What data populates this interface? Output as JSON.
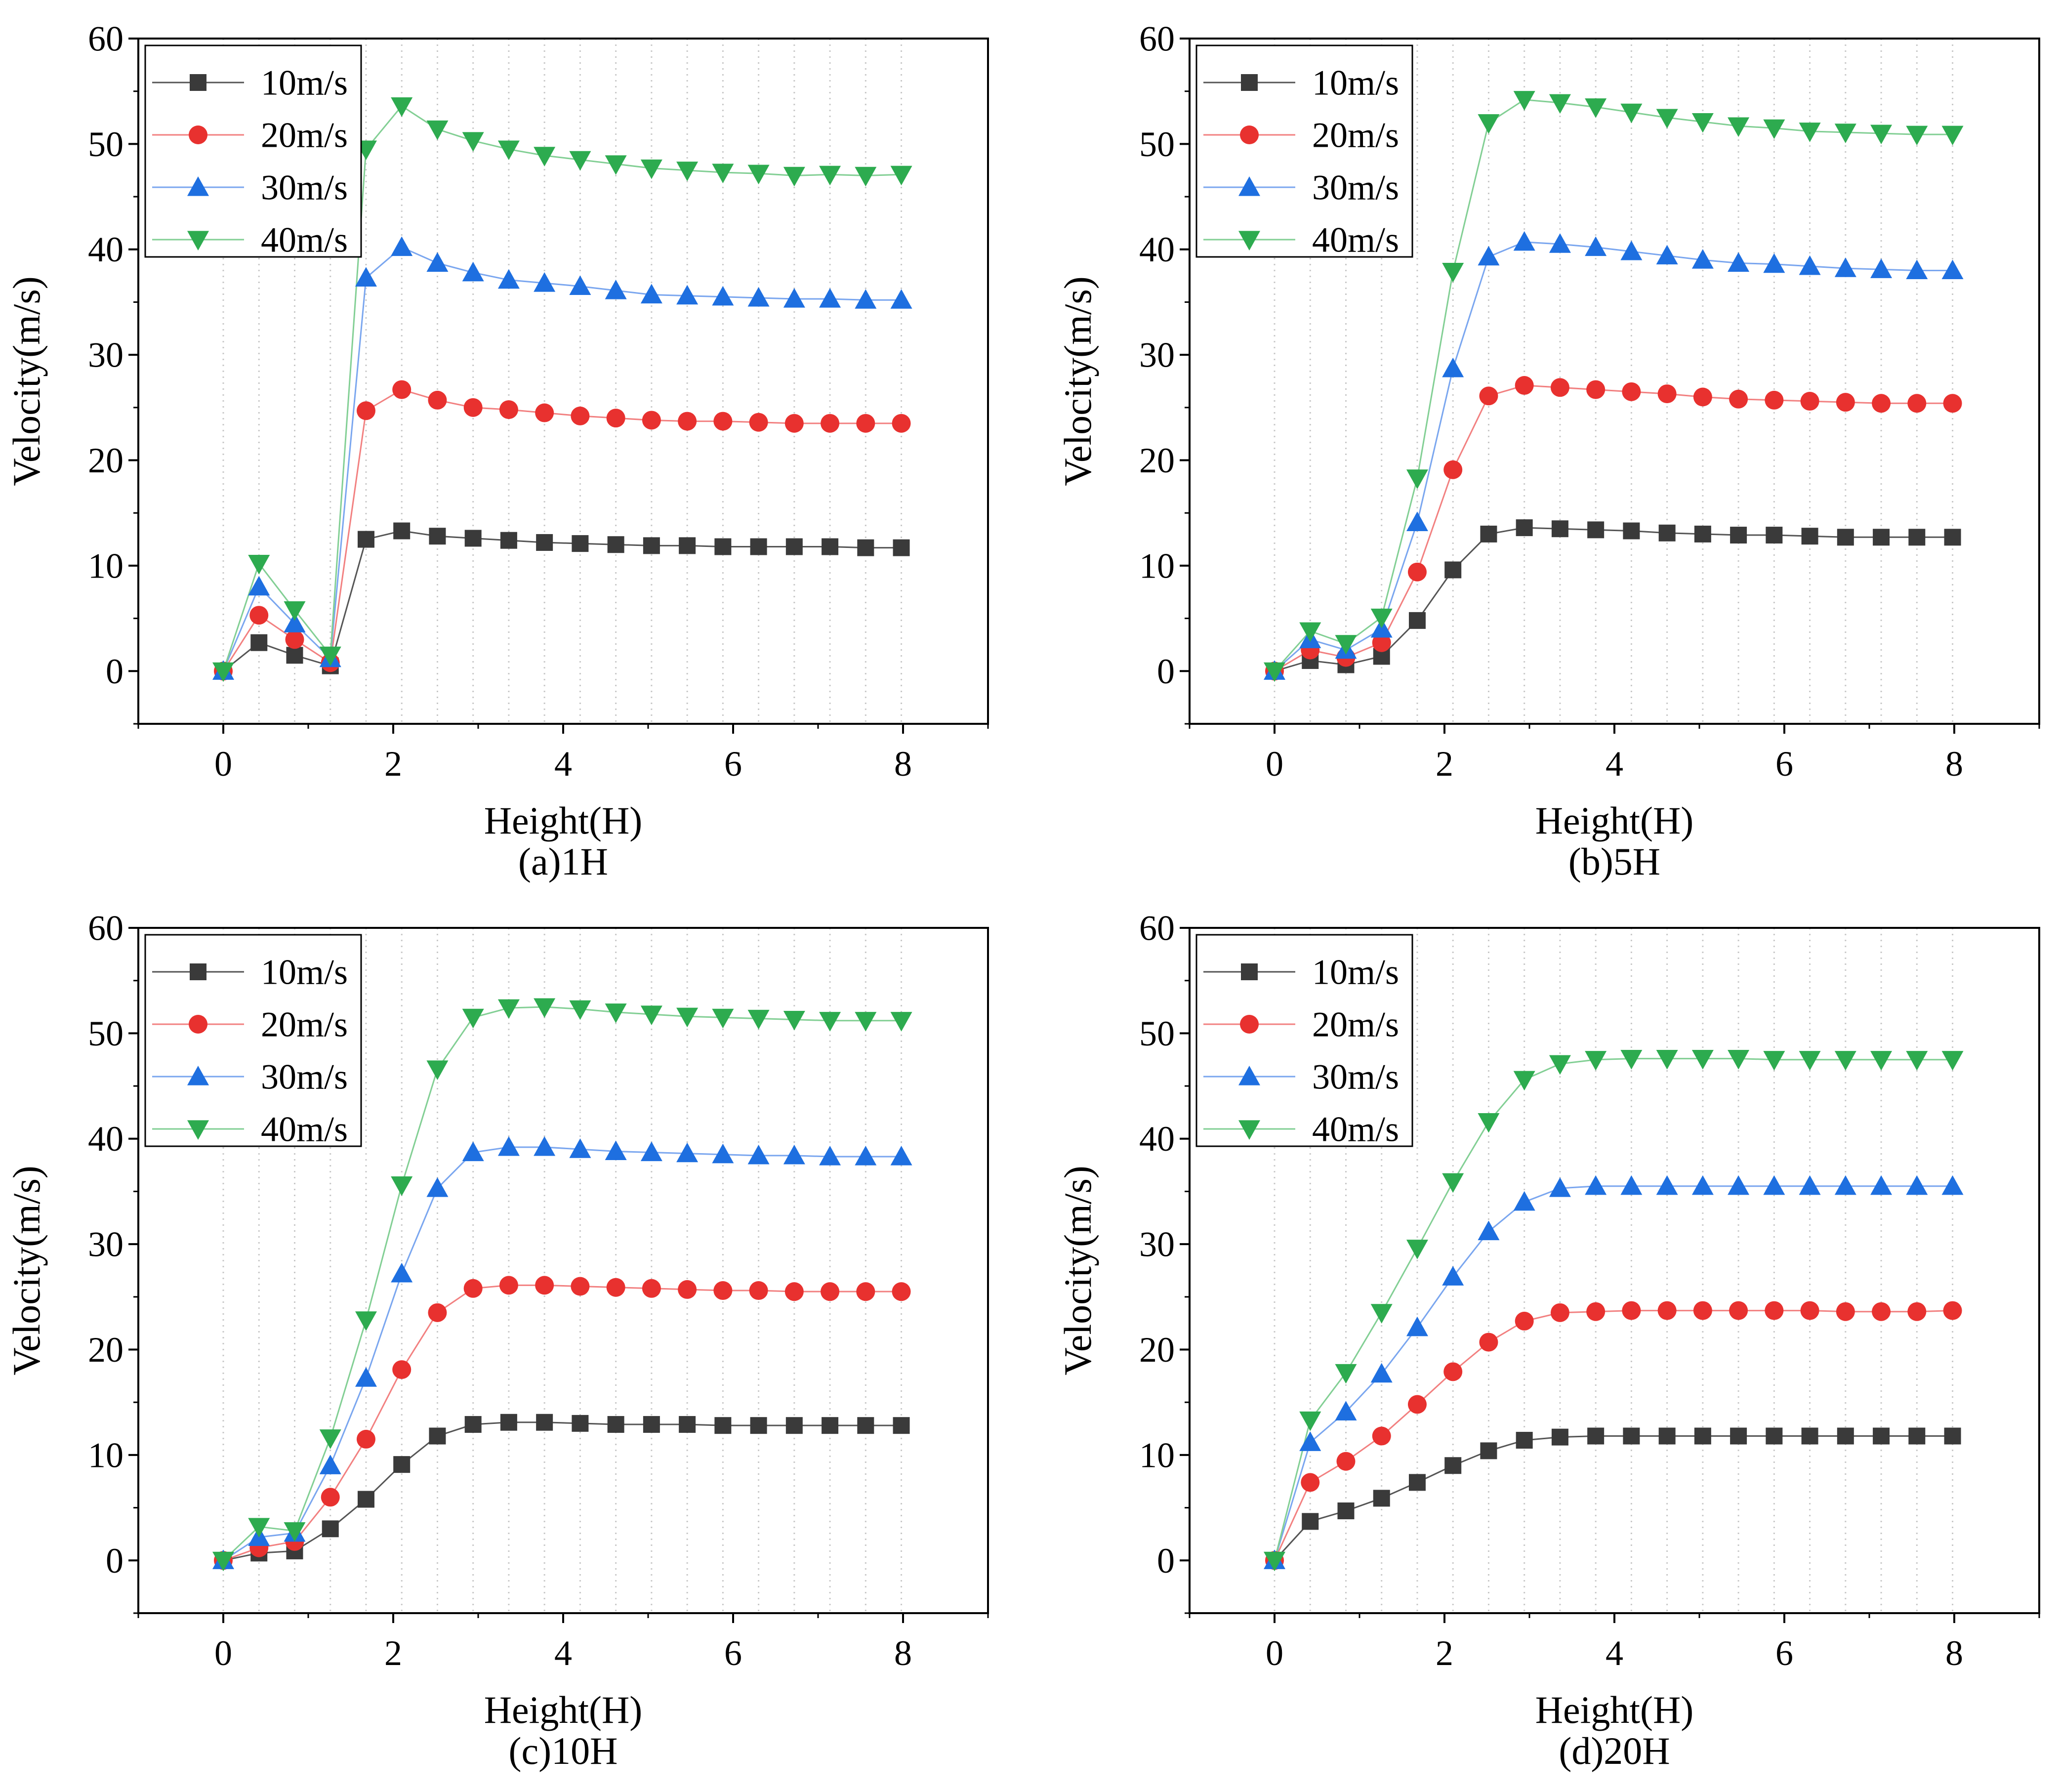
{
  "figure": {
    "legend_labels": [
      "10m/s",
      "20m/s",
      "30m/s",
      "40m/s"
    ],
    "series_colors": [
      "#3a3a3a",
      "#e8312f",
      "#1e6fe0",
      "#2dab4f"
    ],
    "line_colors": [
      "#555555",
      "#f28080",
      "#7aa6ef",
      "#82cf94"
    ],
    "marker_shapes": [
      "square",
      "circle",
      "triangle-up",
      "triangle-down"
    ]
  },
  "chart_data": [
    {
      "type": "line",
      "caption": "(a)1H",
      "xlabel": "Height(H)",
      "ylabel": "Velocity(m/s)",
      "xlim": [
        -1,
        9
      ],
      "ylim": [
        -5,
        60
      ],
      "xticks": [
        0,
        2,
        4,
        6,
        8
      ],
      "yticks": [
        0,
        10,
        20,
        30,
        40,
        50,
        60
      ],
      "grid": "vertical dotted",
      "legend": "top-left",
      "x": [
        0,
        0.42,
        0.84,
        1.26,
        1.68,
        2.1,
        2.52,
        2.94,
        3.36,
        3.78,
        4.2,
        4.62,
        5.04,
        5.46,
        5.88,
        6.3,
        6.72,
        7.14,
        7.56,
        7.98
      ],
      "series": [
        {
          "name": "10m/s",
          "values": [
            0,
            2.7,
            1.5,
            0.5,
            12.5,
            13.3,
            12.8,
            12.6,
            12.4,
            12.2,
            12.1,
            12.0,
            11.9,
            11.9,
            11.8,
            11.8,
            11.8,
            11.8,
            11.7,
            11.7
          ]
        },
        {
          "name": "20m/s",
          "values": [
            0,
            5.3,
            3.0,
            0.8,
            24.7,
            26.7,
            25.7,
            25.0,
            24.8,
            24.5,
            24.2,
            24.0,
            23.8,
            23.7,
            23.7,
            23.6,
            23.5,
            23.5,
            23.5,
            23.5
          ]
        },
        {
          "name": "30m/s",
          "values": [
            0,
            8.0,
            4.5,
            1.2,
            37.3,
            40.2,
            38.7,
            37.8,
            37.1,
            36.8,
            36.5,
            36.1,
            35.7,
            35.6,
            35.5,
            35.4,
            35.3,
            35.3,
            35.2,
            35.2
          ]
        },
        {
          "name": "40m/s",
          "values": [
            0,
            10.2,
            5.8,
            1.5,
            49.5,
            53.6,
            51.4,
            50.3,
            49.5,
            48.9,
            48.5,
            48.1,
            47.7,
            47.5,
            47.3,
            47.2,
            47.0,
            47.1,
            47.0,
            47.1
          ]
        }
      ]
    },
    {
      "type": "line",
      "caption": "(b)5H",
      "xlabel": "Height(H)",
      "ylabel": "Velocity(m/s)",
      "xlim": [
        -1,
        9
      ],
      "ylim": [
        -5,
        60
      ],
      "xticks": [
        0,
        2,
        4,
        6,
        8
      ],
      "yticks": [
        0,
        10,
        20,
        30,
        40,
        50,
        60
      ],
      "grid": "vertical dotted",
      "legend": "top-left",
      "x": [
        0,
        0.42,
        0.84,
        1.26,
        1.68,
        2.1,
        2.52,
        2.94,
        3.36,
        3.78,
        4.2,
        4.62,
        5.04,
        5.46,
        5.88,
        6.3,
        6.72,
        7.14,
        7.56,
        7.98
      ],
      "series": [
        {
          "name": "10m/s",
          "values": [
            0,
            1.0,
            0.6,
            1.4,
            4.8,
            9.6,
            13.0,
            13.6,
            13.5,
            13.4,
            13.3,
            13.1,
            13.0,
            12.9,
            12.9,
            12.8,
            12.7,
            12.7,
            12.7,
            12.7
          ]
        },
        {
          "name": "20m/s",
          "values": [
            0,
            2.0,
            1.3,
            2.7,
            9.4,
            19.1,
            26.1,
            27.1,
            26.9,
            26.7,
            26.5,
            26.3,
            26.0,
            25.8,
            25.7,
            25.6,
            25.5,
            25.4,
            25.4,
            25.4
          ]
        },
        {
          "name": "30m/s",
          "values": [
            0,
            3.0,
            2.0,
            4.0,
            14.1,
            28.7,
            39.3,
            40.7,
            40.5,
            40.2,
            39.8,
            39.4,
            39.0,
            38.7,
            38.6,
            38.4,
            38.2,
            38.1,
            38.0,
            38.0
          ]
        },
        {
          "name": "40m/s",
          "values": [
            0,
            3.8,
            2.6,
            5.1,
            18.3,
            37.9,
            52.0,
            54.2,
            53.9,
            53.5,
            53.0,
            52.5,
            52.1,
            51.7,
            51.5,
            51.2,
            51.1,
            51.0,
            50.9,
            50.9
          ]
        }
      ]
    },
    {
      "type": "line",
      "caption": "(c)10H",
      "xlabel": "Height(H)",
      "ylabel": "Velocity(m/s)",
      "xlim": [
        -1,
        9
      ],
      "ylim": [
        -5,
        60
      ],
      "xticks": [
        0,
        2,
        4,
        6,
        8
      ],
      "yticks": [
        0,
        10,
        20,
        30,
        40,
        50,
        60
      ],
      "grid": "vertical dotted",
      "legend": "top-left",
      "x": [
        0,
        0.42,
        0.84,
        1.26,
        1.68,
        2.1,
        2.52,
        2.94,
        3.36,
        3.78,
        4.2,
        4.62,
        5.04,
        5.46,
        5.88,
        6.3,
        6.72,
        7.14,
        7.56,
        7.98
      ],
      "series": [
        {
          "name": "10m/s",
          "values": [
            0,
            0.7,
            0.9,
            3.0,
            5.8,
            9.1,
            11.8,
            12.9,
            13.1,
            13.1,
            13.0,
            12.9,
            12.9,
            12.9,
            12.8,
            12.8,
            12.8,
            12.8,
            12.8,
            12.8
          ]
        },
        {
          "name": "20m/s",
          "values": [
            0,
            1.2,
            1.8,
            6.0,
            11.5,
            18.1,
            23.5,
            25.8,
            26.1,
            26.1,
            26.0,
            25.9,
            25.8,
            25.7,
            25.6,
            25.6,
            25.5,
            25.5,
            25.5,
            25.5
          ]
        },
        {
          "name": "30m/s",
          "values": [
            0,
            2.2,
            2.6,
            9.0,
            17.3,
            27.2,
            35.3,
            38.7,
            39.2,
            39.2,
            39.0,
            38.8,
            38.7,
            38.6,
            38.5,
            38.4,
            38.4,
            38.3,
            38.3,
            38.3
          ]
        },
        {
          "name": "40m/s",
          "values": [
            0,
            3.2,
            2.8,
            11.6,
            22.8,
            35.6,
            46.6,
            51.5,
            52.4,
            52.5,
            52.3,
            52.0,
            51.8,
            51.6,
            51.5,
            51.4,
            51.3,
            51.2,
            51.2,
            51.2
          ]
        }
      ]
    },
    {
      "type": "line",
      "caption": "(d)20H",
      "xlabel": "Height(H)",
      "ylabel": "Velocity(m/s)",
      "xlim": [
        -1,
        9
      ],
      "ylim": [
        -5,
        60
      ],
      "xticks": [
        0,
        2,
        4,
        6,
        8
      ],
      "yticks": [
        0,
        10,
        20,
        30,
        40,
        50,
        60
      ],
      "grid": "vertical dotted",
      "legend": "top-left",
      "x": [
        0,
        0.42,
        0.84,
        1.26,
        1.68,
        2.1,
        2.52,
        2.94,
        3.36,
        3.78,
        4.2,
        4.62,
        5.04,
        5.46,
        5.88,
        6.3,
        6.72,
        7.14,
        7.56,
        7.98
      ],
      "series": [
        {
          "name": "10m/s",
          "values": [
            0,
            3.7,
            4.7,
            5.9,
            7.4,
            9.0,
            10.4,
            11.4,
            11.7,
            11.8,
            11.8,
            11.8,
            11.8,
            11.8,
            11.8,
            11.8,
            11.8,
            11.8,
            11.8,
            11.8
          ]
        },
        {
          "name": "20m/s",
          "values": [
            0,
            7.4,
            9.4,
            11.8,
            14.8,
            17.9,
            20.7,
            22.7,
            23.5,
            23.6,
            23.7,
            23.7,
            23.7,
            23.7,
            23.7,
            23.7,
            23.6,
            23.6,
            23.6,
            23.7
          ]
        },
        {
          "name": "30m/s",
          "values": [
            0,
            11.2,
            14.1,
            17.7,
            22.1,
            26.9,
            31.2,
            34.0,
            35.3,
            35.5,
            35.5,
            35.5,
            35.5,
            35.5,
            35.5,
            35.5,
            35.5,
            35.5,
            35.5,
            35.5
          ]
        },
        {
          "name": "40m/s",
          "values": [
            0,
            13.3,
            17.8,
            23.5,
            29.6,
            35.9,
            41.6,
            45.6,
            47.1,
            47.5,
            47.6,
            47.6,
            47.6,
            47.6,
            47.5,
            47.5,
            47.5,
            47.5,
            47.5,
            47.5
          ]
        }
      ]
    }
  ]
}
